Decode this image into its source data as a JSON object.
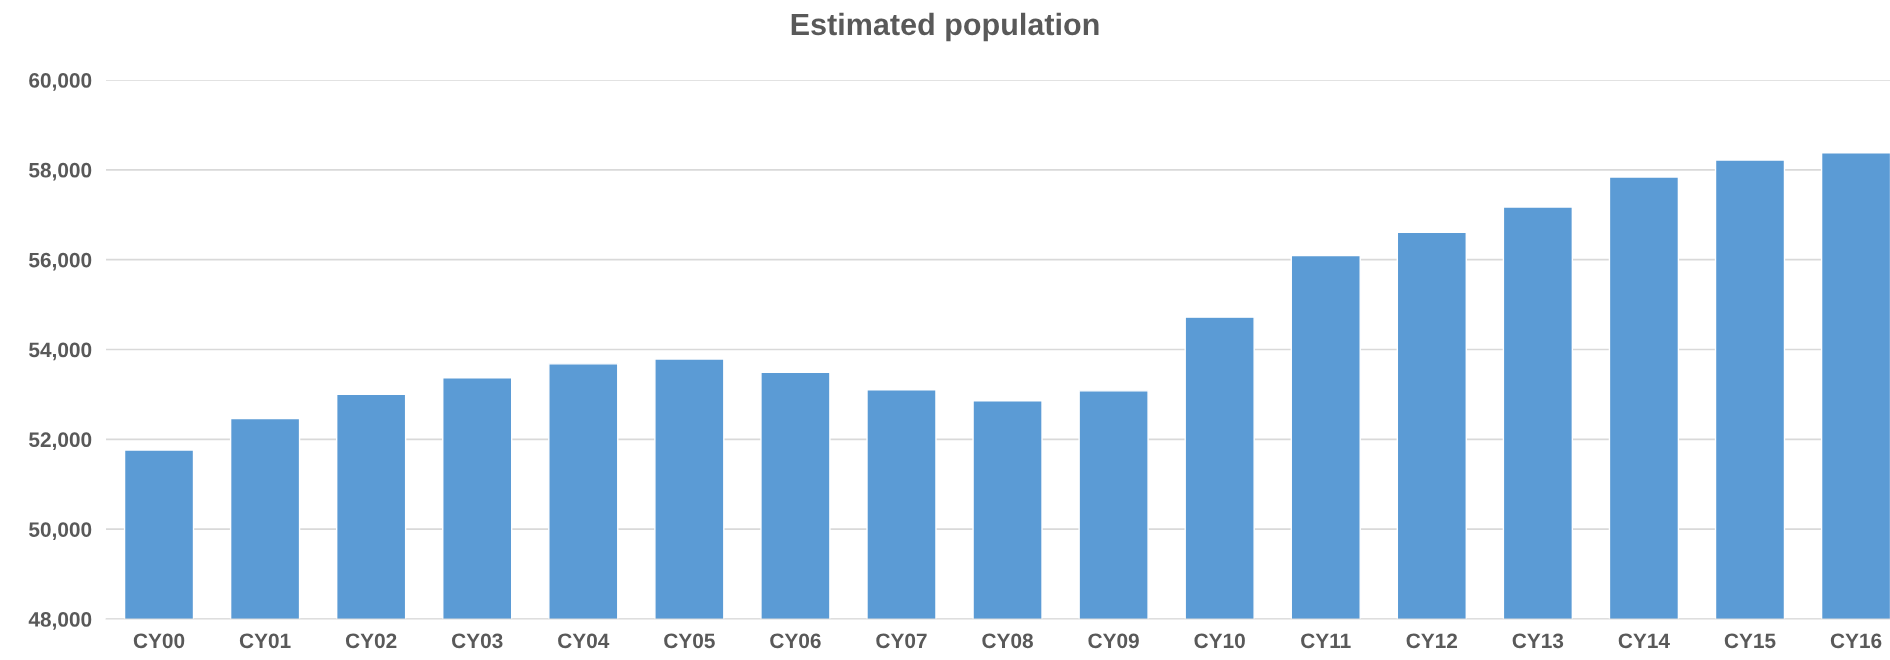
{
  "chart_data": {
    "type": "bar",
    "title": "Estimated population",
    "categories": [
      "CY00",
      "CY01",
      "CY02",
      "CY03",
      "CY04",
      "CY05",
      "CY06",
      "CY07",
      "CY08",
      "CY09",
      "CY10",
      "CY11",
      "CY12",
      "CY13",
      "CY14",
      "CY15",
      "CY16"
    ],
    "values": [
      51760,
      52460,
      53000,
      53370,
      53680,
      53790,
      53490,
      53100,
      52860,
      53080,
      54720,
      56090,
      56610,
      57170,
      57840,
      58220,
      58380
    ],
    "color": "#5b9bd5",
    "ylim": [
      48000,
      60000
    ],
    "yticks": [
      {
        "value": 48000,
        "label": "48,000"
      },
      {
        "value": 50000,
        "label": "50,000"
      },
      {
        "value": 52000,
        "label": "52,000"
      },
      {
        "value": 54000,
        "label": "54,000"
      },
      {
        "value": 56000,
        "label": "56,000"
      },
      {
        "value": 58000,
        "label": "58,000"
      },
      {
        "value": 60000,
        "label": "60,000"
      }
    ],
    "grid": "y",
    "legend": false
  }
}
